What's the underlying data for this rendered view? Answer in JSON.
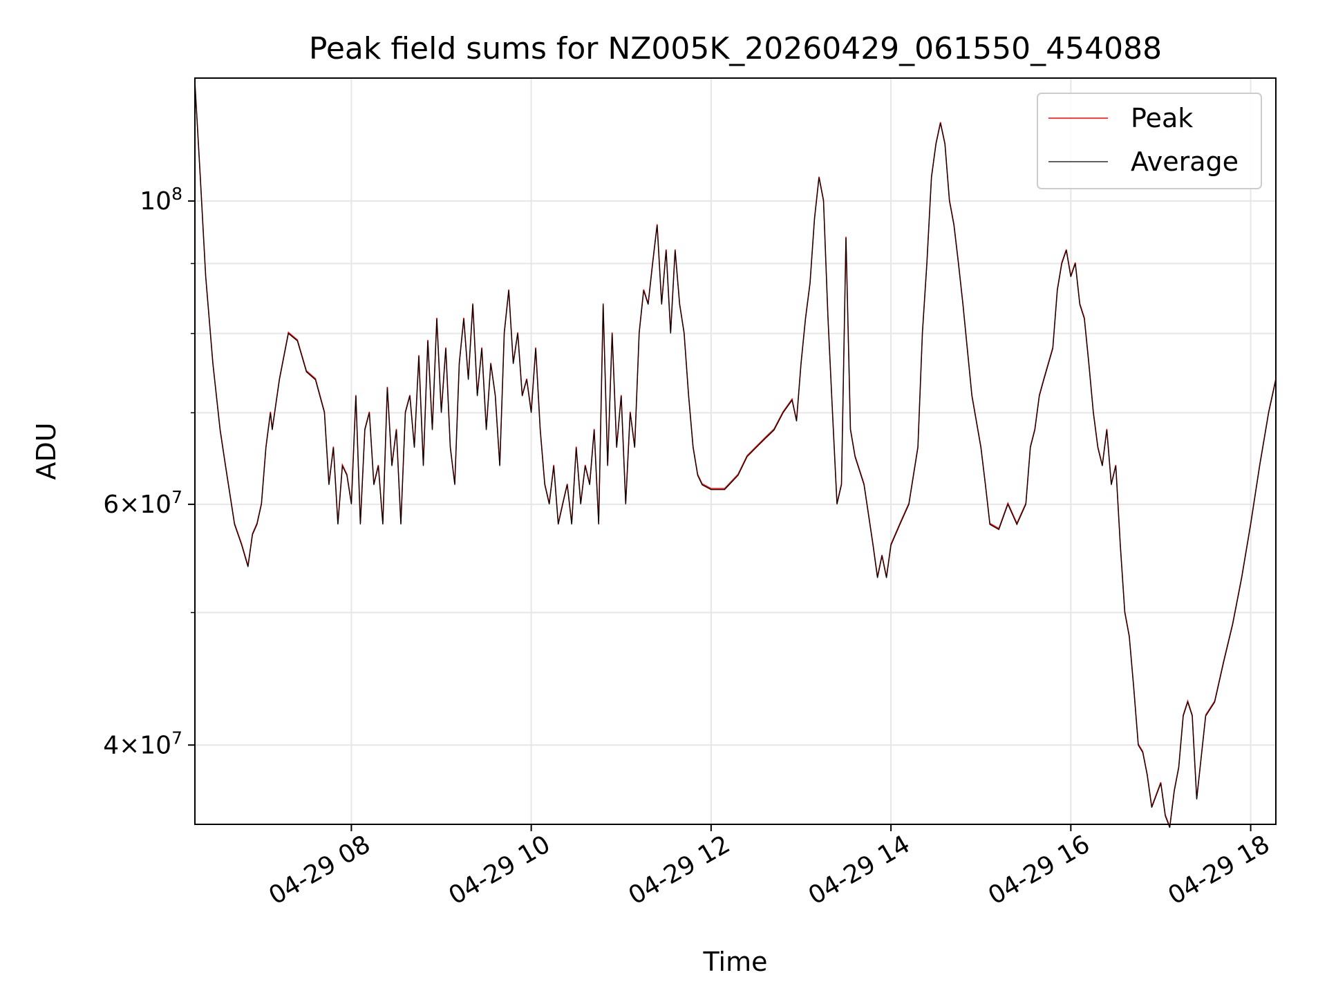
{
  "chart_data": {
    "type": "line",
    "title": "Peak field sums for NZ005K_20260429_061550_454088",
    "xlabel": "Time",
    "ylabel": "ADU",
    "y_scale": "log",
    "x_unit": "hours on 04-29",
    "xlim": [
      6.26,
      18.28
    ],
    "ylim": [
      35000000,
      123000000
    ],
    "grid": true,
    "legend_position": "top-right",
    "x_ticks": [
      {
        "value": 8,
        "label": "04-29 08"
      },
      {
        "value": 10,
        "label": "04-29 10"
      },
      {
        "value": 12,
        "label": "04-29 12"
      },
      {
        "value": 14,
        "label": "04-29 14"
      },
      {
        "value": 16,
        "label": "04-29 16"
      },
      {
        "value": 18,
        "label": "04-29 18"
      }
    ],
    "y_ticks": [
      {
        "value": 40000000,
        "mantissa": "4",
        "exponent": "7"
      },
      {
        "value": 60000000,
        "mantissa": "6",
        "exponent": "7"
      },
      {
        "value": 100000000,
        "mantissa": "",
        "exponent": "8"
      }
    ],
    "y_minor_gridlines": [
      50000000,
      70000000,
      80000000,
      90000000
    ],
    "series": [
      {
        "name": "Peak",
        "color": "#ff0000"
      },
      {
        "name": "Average",
        "color": "#000000"
      }
    ],
    "points": [
      [
        6.26,
        122000000
      ],
      [
        6.32,
        104000000
      ],
      [
        6.38,
        88000000
      ],
      [
        6.46,
        76000000
      ],
      [
        6.54,
        68000000
      ],
      [
        6.6,
        64000000
      ],
      [
        6.7,
        58000000
      ],
      [
        6.78,
        56000000
      ],
      [
        6.85,
        54000000
      ],
      [
        6.9,
        57000000
      ],
      [
        6.95,
        58000000
      ],
      [
        7.0,
        60000000
      ],
      [
        7.05,
        66000000
      ],
      [
        7.1,
        70000000
      ],
      [
        7.12,
        68000000
      ],
      [
        7.2,
        74000000
      ],
      [
        7.3,
        80000000
      ],
      [
        7.4,
        79000000
      ],
      [
        7.5,
        75000000
      ],
      [
        7.6,
        74000000
      ],
      [
        7.7,
        70000000
      ],
      [
        7.75,
        62000000
      ],
      [
        7.8,
        66000000
      ],
      [
        7.85,
        58000000
      ],
      [
        7.9,
        64000000
      ],
      [
        7.95,
        63000000
      ],
      [
        8.0,
        60000000
      ],
      [
        8.05,
        72000000
      ],
      [
        8.1,
        58000000
      ],
      [
        8.15,
        68000000
      ],
      [
        8.2,
        70000000
      ],
      [
        8.25,
        62000000
      ],
      [
        8.3,
        64000000
      ],
      [
        8.35,
        58000000
      ],
      [
        8.4,
        73000000
      ],
      [
        8.45,
        64000000
      ],
      [
        8.5,
        68000000
      ],
      [
        8.55,
        58000000
      ],
      [
        8.6,
        70000000
      ],
      [
        8.65,
        72000000
      ],
      [
        8.7,
        66000000
      ],
      [
        8.75,
        77000000
      ],
      [
        8.8,
        64000000
      ],
      [
        8.85,
        79000000
      ],
      [
        8.9,
        68000000
      ],
      [
        8.95,
        82000000
      ],
      [
        9.0,
        70000000
      ],
      [
        9.05,
        78000000
      ],
      [
        9.1,
        66000000
      ],
      [
        9.15,
        62000000
      ],
      [
        9.2,
        76000000
      ],
      [
        9.25,
        82000000
      ],
      [
        9.3,
        74000000
      ],
      [
        9.35,
        84000000
      ],
      [
        9.4,
        72000000
      ],
      [
        9.45,
        78000000
      ],
      [
        9.5,
        68000000
      ],
      [
        9.55,
        76000000
      ],
      [
        9.6,
        72000000
      ],
      [
        9.65,
        64000000
      ],
      [
        9.7,
        80000000
      ],
      [
        9.75,
        86000000
      ],
      [
        9.8,
        76000000
      ],
      [
        9.85,
        80000000
      ],
      [
        9.9,
        72000000
      ],
      [
        9.95,
        74000000
      ],
      [
        10.0,
        70000000
      ],
      [
        10.05,
        78000000
      ],
      [
        10.1,
        68000000
      ],
      [
        10.15,
        62000000
      ],
      [
        10.2,
        60000000
      ],
      [
        10.25,
        64000000
      ],
      [
        10.3,
        58000000
      ],
      [
        10.35,
        60000000
      ],
      [
        10.4,
        62000000
      ],
      [
        10.45,
        58000000
      ],
      [
        10.5,
        66000000
      ],
      [
        10.55,
        60000000
      ],
      [
        10.6,
        64000000
      ],
      [
        10.65,
        62000000
      ],
      [
        10.7,
        68000000
      ],
      [
        10.75,
        58000000
      ],
      [
        10.8,
        84000000
      ],
      [
        10.85,
        64000000
      ],
      [
        10.9,
        80000000
      ],
      [
        10.95,
        66000000
      ],
      [
        11.0,
        72000000
      ],
      [
        11.05,
        60000000
      ],
      [
        11.1,
        70000000
      ],
      [
        11.15,
        66000000
      ],
      [
        11.2,
        80000000
      ],
      [
        11.25,
        86000000
      ],
      [
        11.3,
        84000000
      ],
      [
        11.35,
        90000000
      ],
      [
        11.4,
        96000000
      ],
      [
        11.45,
        84000000
      ],
      [
        11.5,
        92000000
      ],
      [
        11.55,
        80000000
      ],
      [
        11.6,
        92000000
      ],
      [
        11.65,
        84000000
      ],
      [
        11.7,
        80000000
      ],
      [
        11.75,
        72000000
      ],
      [
        11.8,
        66000000
      ],
      [
        11.85,
        63000000
      ],
      [
        11.9,
        62000000
      ],
      [
        12.0,
        61500000
      ],
      [
        12.15,
        61500000
      ],
      [
        12.3,
        63000000
      ],
      [
        12.4,
        65000000
      ],
      [
        12.5,
        66000000
      ],
      [
        12.6,
        67000000
      ],
      [
        12.7,
        68000000
      ],
      [
        12.8,
        70000000
      ],
      [
        12.9,
        71500000
      ],
      [
        12.95,
        69000000
      ],
      [
        13.0,
        76000000
      ],
      [
        13.05,
        82000000
      ],
      [
        13.1,
        87000000
      ],
      [
        13.15,
        97000000
      ],
      [
        13.2,
        104000000
      ],
      [
        13.25,
        100000000
      ],
      [
        13.3,
        82000000
      ],
      [
        13.35,
        70000000
      ],
      [
        13.4,
        60000000
      ],
      [
        13.45,
        62000000
      ],
      [
        13.5,
        94000000
      ],
      [
        13.55,
        68000000
      ],
      [
        13.6,
        65000000
      ],
      [
        13.7,
        62000000
      ],
      [
        13.8,
        56000000
      ],
      [
        13.85,
        53000000
      ],
      [
        13.9,
        55000000
      ],
      [
        13.95,
        53000000
      ],
      [
        14.0,
        56000000
      ],
      [
        14.1,
        58000000
      ],
      [
        14.2,
        60000000
      ],
      [
        14.3,
        66000000
      ],
      [
        14.35,
        80000000
      ],
      [
        14.4,
        90000000
      ],
      [
        14.45,
        104000000
      ],
      [
        14.5,
        110000000
      ],
      [
        14.55,
        114000000
      ],
      [
        14.6,
        110000000
      ],
      [
        14.65,
        100000000
      ],
      [
        14.7,
        96000000
      ],
      [
        14.75,
        90000000
      ],
      [
        14.8,
        84000000
      ],
      [
        14.9,
        72000000
      ],
      [
        15.0,
        66000000
      ],
      [
        15.05,
        62000000
      ],
      [
        15.1,
        58000000
      ],
      [
        15.2,
        57500000
      ],
      [
        15.3,
        60000000
      ],
      [
        15.4,
        58000000
      ],
      [
        15.5,
        60000000
      ],
      [
        15.55,
        66000000
      ],
      [
        15.6,
        68000000
      ],
      [
        15.65,
        72000000
      ],
      [
        15.7,
        74000000
      ],
      [
        15.8,
        78000000
      ],
      [
        15.85,
        86000000
      ],
      [
        15.9,
        90000000
      ],
      [
        15.95,
        92000000
      ],
      [
        16.0,
        88000000
      ],
      [
        16.05,
        90000000
      ],
      [
        16.1,
        84000000
      ],
      [
        16.15,
        82000000
      ],
      [
        16.2,
        76000000
      ],
      [
        16.25,
        70000000
      ],
      [
        16.3,
        66000000
      ],
      [
        16.35,
        64000000
      ],
      [
        16.4,
        68000000
      ],
      [
        16.45,
        62000000
      ],
      [
        16.5,
        64000000
      ],
      [
        16.55,
        56000000
      ],
      [
        16.6,
        50000000
      ],
      [
        16.65,
        48000000
      ],
      [
        16.7,
        44000000
      ],
      [
        16.75,
        40000000
      ],
      [
        16.8,
        39500000
      ],
      [
        16.85,
        38000000
      ],
      [
        16.9,
        36000000
      ],
      [
        17.0,
        37500000
      ],
      [
        17.05,
        35500000
      ],
      [
        17.1,
        34800000
      ],
      [
        17.15,
        37000000
      ],
      [
        17.2,
        38500000
      ],
      [
        17.25,
        42000000
      ],
      [
        17.3,
        43000000
      ],
      [
        17.35,
        42000000
      ],
      [
        17.4,
        36500000
      ],
      [
        17.5,
        42000000
      ],
      [
        17.6,
        43000000
      ],
      [
        17.7,
        46000000
      ],
      [
        17.8,
        49000000
      ],
      [
        17.9,
        53000000
      ],
      [
        18.0,
        58000000
      ],
      [
        18.1,
        64000000
      ],
      [
        18.2,
        70000000
      ],
      [
        18.28,
        74000000
      ]
    ]
  }
}
